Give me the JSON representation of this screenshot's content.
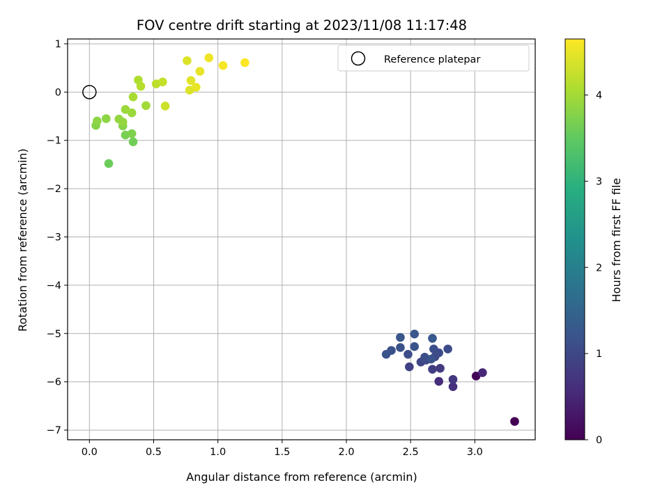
{
  "chart_data": {
    "type": "scatter",
    "title": "FOV centre drift starting at 2023/11/08 11:17:48",
    "xlabel": "Angular distance from reference (arcmin)",
    "ylabel": "Rotation from reference (arcmin)",
    "xlim": [
      -0.17,
      3.47
    ],
    "ylim": [
      -7.2,
      1.1
    ],
    "xticks": [
      0.0,
      0.5,
      1.0,
      1.5,
      2.0,
      2.5,
      3.0
    ],
    "xtick_labels": [
      "0.0",
      "0.5",
      "1.0",
      "1.5",
      "2.0",
      "2.5",
      "3.0"
    ],
    "yticks": [
      1,
      0,
      -1,
      -2,
      -3,
      -4,
      -5,
      -6,
      -7
    ],
    "ytick_labels": [
      "1",
      "0",
      "−1",
      "−2",
      "−3",
      "−4",
      "−5",
      "−6",
      "−7"
    ],
    "grid": true,
    "legend": {
      "position": "top-right",
      "entries": [
        "Reference platepar"
      ]
    },
    "reference_point": {
      "x": 0.0,
      "y": 0.0
    },
    "colorbar": {
      "label": "Hours from first FF file",
      "colormap": "viridis",
      "range": [
        0,
        4.65
      ],
      "ticks": [
        0,
        1,
        2,
        3,
        4
      ],
      "tick_labels": [
        "0",
        "1",
        "2",
        "3",
        "4"
      ]
    },
    "points": [
      {
        "x": 3.31,
        "y": -6.82,
        "hours": 0.0
      },
      {
        "x": 3.01,
        "y": -5.88,
        "hours": 0.05
      },
      {
        "x": 3.06,
        "y": -5.81,
        "hours": 0.5
      },
      {
        "x": 2.72,
        "y": -5.99,
        "hours": 0.6
      },
      {
        "x": 2.83,
        "y": -6.1,
        "hours": 0.65
      },
      {
        "x": 2.83,
        "y": -5.95,
        "hours": 0.75
      },
      {
        "x": 2.73,
        "y": -5.72,
        "hours": 0.8
      },
      {
        "x": 2.67,
        "y": -5.74,
        "hours": 0.85
      },
      {
        "x": 2.49,
        "y": -5.69,
        "hours": 0.9
      },
      {
        "x": 2.58,
        "y": -5.59,
        "hours": 0.95
      },
      {
        "x": 2.62,
        "y": -5.55,
        "hours": 1.0
      },
      {
        "x": 2.69,
        "y": -5.48,
        "hours": 1.0
      },
      {
        "x": 2.72,
        "y": -5.4,
        "hours": 1.05
      },
      {
        "x": 2.79,
        "y": -5.32,
        "hours": 1.05
      },
      {
        "x": 2.68,
        "y": -5.32,
        "hours": 1.1
      },
      {
        "x": 2.61,
        "y": -5.49,
        "hours": 1.1
      },
      {
        "x": 2.48,
        "y": -5.43,
        "hours": 1.1
      },
      {
        "x": 2.42,
        "y": -5.29,
        "hours": 1.15
      },
      {
        "x": 2.35,
        "y": -5.35,
        "hours": 1.15
      },
      {
        "x": 2.31,
        "y": -5.43,
        "hours": 1.2
      },
      {
        "x": 2.53,
        "y": -5.27,
        "hours": 1.2
      },
      {
        "x": 2.42,
        "y": -5.08,
        "hours": 1.25
      },
      {
        "x": 2.53,
        "y": -5.01,
        "hours": 1.25
      },
      {
        "x": 2.67,
        "y": -5.1,
        "hours": 1.3
      },
      {
        "x": 2.66,
        "y": -5.53,
        "hours": 1.2
      },
      {
        "x": 0.15,
        "y": -1.48,
        "hours": 3.6
      },
      {
        "x": 0.34,
        "y": -1.03,
        "hours": 3.65
      },
      {
        "x": 0.28,
        "y": -0.89,
        "hours": 3.7
      },
      {
        "x": 0.33,
        "y": -0.86,
        "hours": 3.75
      },
      {
        "x": 0.26,
        "y": -0.7,
        "hours": 3.8
      },
      {
        "x": 0.05,
        "y": -0.69,
        "hours": 3.8
      },
      {
        "x": 0.06,
        "y": -0.6,
        "hours": 3.85
      },
      {
        "x": 0.13,
        "y": -0.55,
        "hours": 3.85
      },
      {
        "x": 0.23,
        "y": -0.56,
        "hours": 3.9
      },
      {
        "x": 0.26,
        "y": -0.62,
        "hours": 3.9
      },
      {
        "x": 0.33,
        "y": -0.43,
        "hours": 3.95
      },
      {
        "x": 0.28,
        "y": -0.36,
        "hours": 3.95
      },
      {
        "x": 0.34,
        "y": -0.1,
        "hours": 4.05
      },
      {
        "x": 0.44,
        "y": -0.28,
        "hours": 4.0
      },
      {
        "x": 0.38,
        "y": 0.25,
        "hours": 4.1
      },
      {
        "x": 0.4,
        "y": 0.12,
        "hours": 4.15
      },
      {
        "x": 0.52,
        "y": 0.17,
        "hours": 4.2
      },
      {
        "x": 0.57,
        "y": 0.21,
        "hours": 4.25
      },
      {
        "x": 0.59,
        "y": -0.29,
        "hours": 4.3
      },
      {
        "x": 0.76,
        "y": 0.65,
        "hours": 4.4
      },
      {
        "x": 0.78,
        "y": 0.04,
        "hours": 4.4
      },
      {
        "x": 0.79,
        "y": 0.24,
        "hours": 4.45
      },
      {
        "x": 0.83,
        "y": 0.1,
        "hours": 4.5
      },
      {
        "x": 0.86,
        "y": 0.43,
        "hours": 4.5
      },
      {
        "x": 0.93,
        "y": 0.71,
        "hours": 4.55
      },
      {
        "x": 1.04,
        "y": 0.55,
        "hours": 4.6
      },
      {
        "x": 1.21,
        "y": 0.61,
        "hours": 4.65
      }
    ]
  }
}
